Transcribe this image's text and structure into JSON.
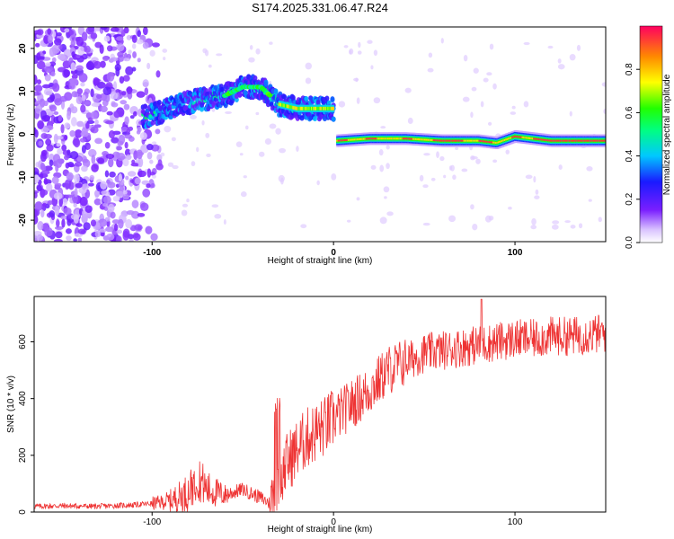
{
  "title": "S174.2025.331.06.47.R24",
  "chart_data": [
    {
      "type": "heatmap",
      "xlabel": "Height of straight line (km)",
      "ylabel": "Frequency (Hz)",
      "xlim": [
        -165,
        150
      ],
      "ylim": [
        -25,
        25
      ],
      "x_ticks": [
        -100,
        0,
        100
      ],
      "y_ticks": [
        20,
        10,
        0,
        -10,
        -20
      ],
      "colorbar": {
        "label": "Normalized spectral amplitude",
        "range": [
          0,
          1
        ],
        "ticks": [
          "0.0",
          "0.2",
          "0.4",
          "0.6",
          "0.8"
        ],
        "colormap": "rainbow"
      },
      "ridge": {
        "description_points_x": [
          -105,
          -90,
          -75,
          -60,
          -50,
          -40,
          -30,
          -20,
          -10,
          0,
          2,
          20,
          40,
          60,
          80,
          90,
          100,
          120,
          150
        ],
        "description_points_y": [
          4,
          6,
          8,
          9,
          11,
          11,
          7,
          6,
          6,
          6,
          -1.5,
          -1,
          -1,
          -1.5,
          -1.5,
          -2,
          -0.5,
          -1.5,
          -1.5
        ]
      },
      "noise_region_x": [
        -165,
        -100
      ]
    },
    {
      "type": "line",
      "xlabel": "Height of straight line (km)",
      "ylabel": "SNR (10 * v/v)",
      "xlim": [
        -165,
        150
      ],
      "ylim": [
        0,
        760
      ],
      "x_ticks": [
        -100,
        0,
        100
      ],
      "y_ticks": [
        0,
        200,
        400,
        600
      ],
      "series": [
        {
          "color": "#ee3333",
          "x": [
            -165,
            -150,
            -130,
            -110,
            -100,
            -90,
            -80,
            -75,
            -70,
            -60,
            -50,
            -40,
            -35,
            -30,
            -25,
            -20,
            -15,
            -10,
            -5,
            0,
            10,
            20,
            30,
            40,
            50,
            60,
            70,
            80,
            90,
            100,
            110,
            120,
            130,
            140,
            150
          ],
          "y": [
            20,
            22,
            20,
            25,
            30,
            40,
            70,
            130,
            80,
            60,
            80,
            50,
            30,
            120,
            180,
            220,
            260,
            280,
            300,
            330,
            380,
            430,
            500,
            530,
            560,
            570,
            580,
            590,
            600,
            610,
            610,
            620,
            620,
            625,
            630
          ]
        }
      ]
    }
  ]
}
